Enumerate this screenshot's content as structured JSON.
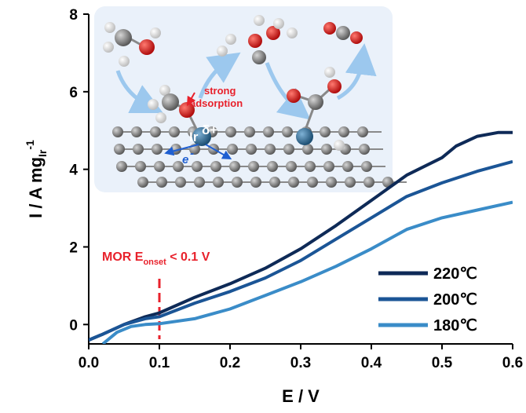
{
  "chart_data": {
    "type": "line",
    "xlabel": "E / V",
    "ylabel": {
      "main": "I / A mg",
      "sub": "Ir",
      "sup": "-1"
    },
    "xlim": [
      0.0,
      0.6
    ],
    "ylim": [
      -0.5,
      8
    ],
    "xticks": [
      0.0,
      0.1,
      0.2,
      0.3,
      0.4,
      0.5,
      0.6
    ],
    "yticks": [
      0,
      2,
      4,
      6,
      8
    ],
    "xtick_labels": [
      "0.0",
      "0.1",
      "0.2",
      "0.3",
      "0.4",
      "0.5",
      "0.6"
    ],
    "ytick_labels": [
      "0",
      "2",
      "4",
      "6",
      "8"
    ],
    "grid": false,
    "legend_position": "bottom-right",
    "series": [
      {
        "name": "220℃",
        "color": "#0e2a57",
        "x": [
          0.0,
          0.02,
          0.05,
          0.08,
          0.1,
          0.15,
          0.2,
          0.25,
          0.3,
          0.35,
          0.4,
          0.45,
          0.5,
          0.52,
          0.55,
          0.58,
          0.6
        ],
        "y": [
          -0.4,
          -0.25,
          0.0,
          0.2,
          0.3,
          0.7,
          1.05,
          1.45,
          1.95,
          2.55,
          3.2,
          3.85,
          4.3,
          4.6,
          4.85,
          4.95,
          4.95
        ]
      },
      {
        "name": "200℃",
        "color": "#1b5596",
        "x": [
          0.0,
          0.02,
          0.05,
          0.08,
          0.1,
          0.15,
          0.2,
          0.25,
          0.3,
          0.35,
          0.4,
          0.45,
          0.5,
          0.55,
          0.6
        ],
        "y": [
          -0.4,
          -0.25,
          0.0,
          0.15,
          0.2,
          0.55,
          0.85,
          1.2,
          1.65,
          2.2,
          2.75,
          3.3,
          3.65,
          3.95,
          4.2
        ]
      },
      {
        "name": "180℃",
        "color": "#3a8cc8",
        "x": [
          0.02,
          0.04,
          0.06,
          0.08,
          0.1,
          0.15,
          0.2,
          0.25,
          0.3,
          0.35,
          0.4,
          0.45,
          0.5,
          0.55,
          0.6
        ],
        "y": [
          -0.5,
          -0.2,
          -0.05,
          0.0,
          0.02,
          0.15,
          0.4,
          0.75,
          1.1,
          1.5,
          1.95,
          2.45,
          2.75,
          2.95,
          3.15
        ]
      }
    ],
    "annotation": {
      "text_main": "MOR E",
      "text_sub": "onset",
      "text_rest": " < 0.1 V",
      "x": 0.1,
      "color": "#e8212b"
    },
    "inset": {
      "strong_adsorption_line1": "strong",
      "strong_adsorption_line2": "adsorption",
      "ir_label": "Ir",
      "ir_sup": "δ+",
      "electron_label": "e",
      "electron_sup": "-",
      "colors": {
        "carbon": "#777777",
        "oxygen": "#d32020",
        "hydrogen": "#f0f0f0",
        "iridium": "#2d6d96",
        "arrow": "#9cc8ee"
      }
    }
  }
}
